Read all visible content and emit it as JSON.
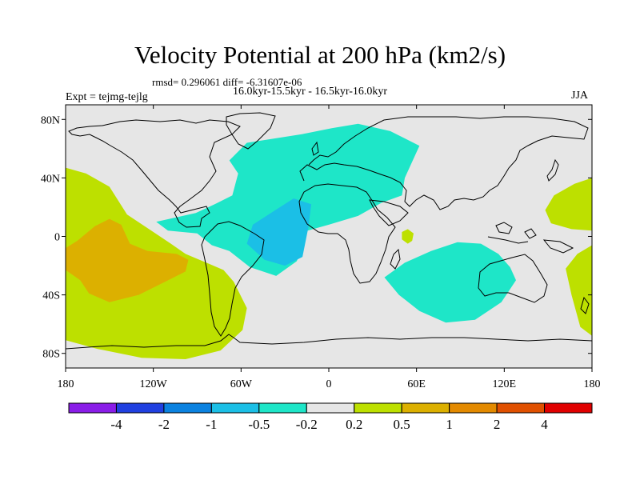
{
  "header": {
    "title": "Velocity Potential at 200 hPa (km2/s)",
    "stats": "rmsd= 0.296061  diff= -6.31607e-06",
    "period": "16.0kyr-15.5kyr - 16.5kyr-16.0kyr",
    "expt": "Expt = tejmg-tejlg",
    "season": "JJA"
  },
  "chart_data": {
    "type": "heatmap",
    "title": "Velocity Potential at 200 hPa (km2/s)",
    "projection": "cylindrical equidistant",
    "xlim": [
      -180,
      180
    ],
    "ylim": [
      -90,
      90
    ],
    "lat_ticks": [
      {
        "value": 80,
        "label": "80N"
      },
      {
        "value": 40,
        "label": "40N"
      },
      {
        "value": 0,
        "label": "0"
      },
      {
        "value": -40,
        "label": "40S"
      },
      {
        "value": -80,
        "label": "80S"
      }
    ],
    "lon_ticks": [
      {
        "value": -180,
        "label": "180"
      },
      {
        "value": -120,
        "label": "120W"
      },
      {
        "value": -60,
        "label": "60W"
      },
      {
        "value": 0,
        "label": "0"
      },
      {
        "value": 60,
        "label": "60E"
      },
      {
        "value": 120,
        "label": "120E"
      },
      {
        "value": 180,
        "label": "180"
      }
    ],
    "colorbar": {
      "colors": [
        "#8a1de8",
        "#2040e0",
        "#0b82e0",
        "#1bbfe6",
        "#1ee6c8",
        "#e6e6e6",
        "#bde000",
        "#dcb000",
        "#e38a00",
        "#e05000",
        "#e00000"
      ],
      "labels": [
        "-4",
        "-2",
        "-1",
        "-0.5",
        "-0.2",
        "0.2",
        "0.5",
        "1",
        "2",
        "4"
      ]
    },
    "regions": [
      {
        "name": "pacific-positive",
        "level": 0.5,
        "color": "#bde000",
        "poly": [
          [
            -180,
            47
          ],
          [
            -166,
            43
          ],
          [
            -150,
            34
          ],
          [
            -138,
            15
          ],
          [
            -120,
            3
          ],
          [
            -108,
            -5
          ],
          [
            -98,
            -12
          ],
          [
            -86,
            -17
          ],
          [
            -72,
            -23
          ],
          [
            -65,
            -31
          ],
          [
            -56,
            -49
          ],
          [
            -59,
            -64
          ],
          [
            -74,
            -78
          ],
          [
            -98,
            -84
          ],
          [
            -128,
            -83
          ],
          [
            -158,
            -77
          ],
          [
            -180,
            -71
          ]
        ]
      },
      {
        "name": "pacific-core",
        "level": 1.0,
        "color": "#dcb000",
        "poly": [
          [
            -180,
            -8
          ],
          [
            -172,
            -3
          ],
          [
            -160,
            7
          ],
          [
            -150,
            12
          ],
          [
            -142,
            8
          ],
          [
            -136,
            -5
          ],
          [
            -124,
            -10
          ],
          [
            -104,
            -12
          ],
          [
            -96,
            -16
          ],
          [
            -98,
            -24
          ],
          [
            -112,
            -31
          ],
          [
            -130,
            -40
          ],
          [
            -150,
            -45
          ],
          [
            -164,
            -39
          ],
          [
            -170,
            -30
          ],
          [
            -180,
            -23
          ]
        ]
      },
      {
        "name": "atlantic-negative",
        "level": -0.2,
        "color": "#1ee6c8",
        "poly": [
          [
            -91,
            16
          ],
          [
            -78,
            22
          ],
          [
            -66,
            28
          ],
          [
            -62,
            43
          ],
          [
            -68,
            52
          ],
          [
            -56,
            64
          ],
          [
            -18,
            70
          ],
          [
            2,
            74
          ],
          [
            20,
            77
          ],
          [
            42,
            72
          ],
          [
            62,
            62
          ],
          [
            52,
            40
          ],
          [
            50,
            28
          ],
          [
            36,
            23
          ],
          [
            20,
            14
          ],
          [
            0,
            8
          ],
          [
            -18,
            3
          ],
          [
            -18,
            -9
          ],
          [
            -22,
            -17
          ],
          [
            -36,
            -27
          ],
          [
            -54,
            -21
          ],
          [
            -68,
            -10
          ],
          [
            -80,
            -6
          ],
          [
            -90,
            2
          ],
          [
            -110,
            4
          ],
          [
            -118,
            10
          ]
        ]
      },
      {
        "name": "atlantic-core",
        "level": -0.5,
        "color": "#1bbfe6",
        "poly": [
          [
            -52,
            8
          ],
          [
            -38,
            17
          ],
          [
            -24,
            26
          ],
          [
            -12,
            22
          ],
          [
            -14,
            6
          ],
          [
            -18,
            -14
          ],
          [
            -30,
            -20
          ],
          [
            -44,
            -16
          ],
          [
            -56,
            -5
          ]
        ]
      },
      {
        "name": "indian-ocean-negative",
        "level": -0.2,
        "color": "#1ee6c8",
        "poly": [
          [
            38,
            -28
          ],
          [
            52,
            -18
          ],
          [
            70,
            -10
          ],
          [
            88,
            -4
          ],
          [
            104,
            -5
          ],
          [
            116,
            -12
          ],
          [
            124,
            -21
          ],
          [
            128,
            -30
          ],
          [
            118,
            -45
          ],
          [
            100,
            -57
          ],
          [
            80,
            -59
          ],
          [
            62,
            -51
          ],
          [
            48,
            -40
          ]
        ]
      },
      {
        "name": "west-pacific-positive",
        "level": 0.5,
        "color": "#bde000",
        "poly": [
          [
            180,
            40
          ],
          [
            168,
            36
          ],
          [
            154,
            28
          ],
          [
            148,
            18
          ],
          [
            152,
            9
          ],
          [
            166,
            5
          ],
          [
            180,
            4
          ]
        ]
      },
      {
        "name": "sw-pacific-positive",
        "level": 0.5,
        "color": "#bde000",
        "poly": [
          [
            180,
            -6
          ],
          [
            170,
            -12
          ],
          [
            162,
            -22
          ],
          [
            166,
            -40
          ],
          [
            172,
            -62
          ],
          [
            180,
            -68
          ]
        ]
      },
      {
        "name": "east-africa-positive",
        "level": 0.5,
        "color": "#bde000",
        "poly": [
          [
            54,
            5
          ],
          [
            58,
            2
          ],
          [
            57,
            -3
          ],
          [
            54,
            -5
          ],
          [
            50,
            -2
          ],
          [
            50,
            3
          ]
        ]
      }
    ]
  }
}
